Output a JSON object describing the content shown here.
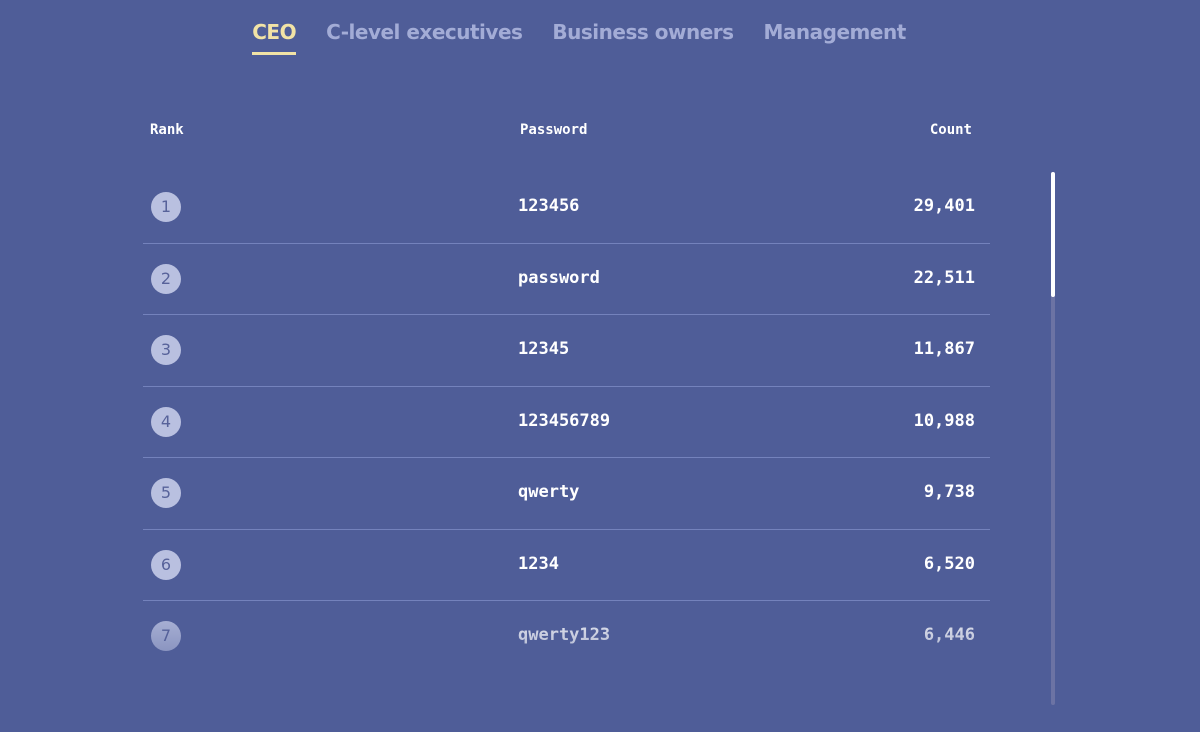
{
  "tabs": [
    {
      "label": "CEO",
      "active": true
    },
    {
      "label": "C-level executives"
    },
    {
      "label": "Business owners"
    },
    {
      "label": "Management"
    }
  ],
  "table": {
    "headers": {
      "rank": "Rank",
      "password": "Password",
      "count": "Count"
    },
    "rows": [
      {
        "rank": "1",
        "password": "123456",
        "count": "29,401"
      },
      {
        "rank": "2",
        "password": "password",
        "count": "22,511"
      },
      {
        "rank": "3",
        "password": "12345",
        "count": "11,867"
      },
      {
        "rank": "4",
        "password": "123456789",
        "count": "10,988"
      },
      {
        "rank": "5",
        "password": "qwerty",
        "count": "9,738"
      },
      {
        "rank": "6",
        "password": "1234",
        "count": "6,520"
      },
      {
        "rank": "7",
        "password": "qwerty123",
        "count": "6,446"
      }
    ]
  },
  "colors": {
    "background": "#4f5d98",
    "accent": "#f2e3a6"
  }
}
